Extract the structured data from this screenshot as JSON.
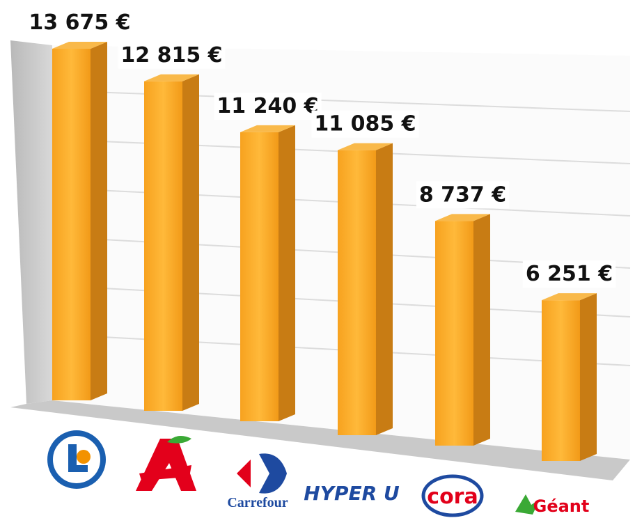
{
  "chart_data": {
    "type": "bar",
    "categories": [
      null,
      null,
      "Carrefour",
      "HYPER U",
      "cora",
      "Géant"
    ],
    "values": [
      13675,
      12815,
      11240,
      11085,
      8737,
      6251
    ],
    "value_labels": [
      "13 675 €",
      "12 815 €",
      "11 240 €",
      "11 085 €",
      "8 737 €",
      "6 251 €"
    ],
    "color": "#f5a020",
    "grid": true
  }
}
